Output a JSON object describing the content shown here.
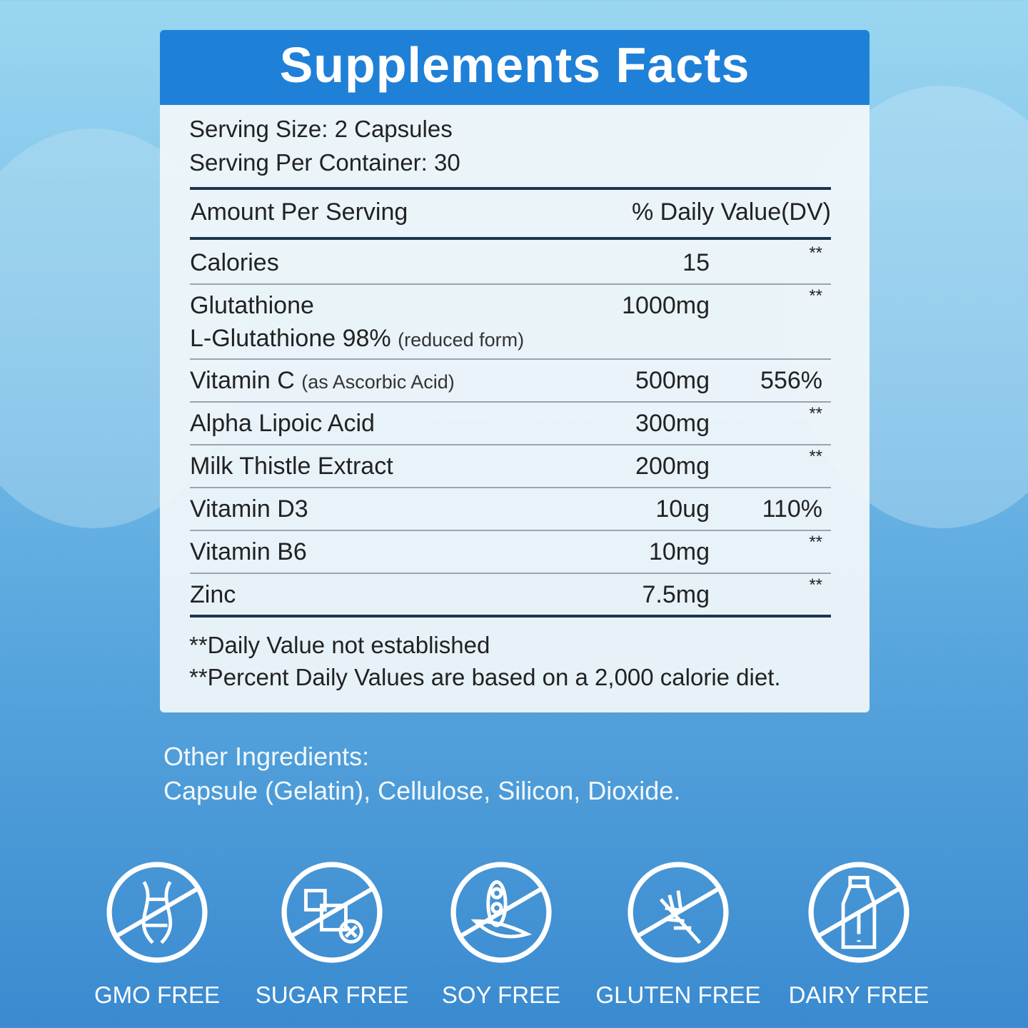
{
  "title": "Supplements Facts",
  "serving_size": "Serving Size: 2 Capsules",
  "servings_per_container": "Serving Per Container: 30",
  "header_left": "Amount Per Serving",
  "header_right": "% Daily Value(DV)",
  "rows": [
    {
      "name": "Calories",
      "amount": "15",
      "dv": "**"
    },
    {
      "name": "Glutathione",
      "sub": "L-Glutathione 98%",
      "sub_note": "(reduced form)",
      "amount": "1000mg",
      "dv": "**"
    },
    {
      "name": "Vitamin C",
      "note": "(as Ascorbic Acid)",
      "amount": "500mg",
      "dv": "556%"
    },
    {
      "name": "Alpha Lipoic Acid",
      "amount": "300mg",
      "dv": "**"
    },
    {
      "name": "Milk Thistle Extract",
      "amount": "200mg",
      "dv": "**"
    },
    {
      "name": "Vitamin D3",
      "amount": "10ug",
      "dv": "110%"
    },
    {
      "name": "Vitamin B6",
      "amount": "10mg",
      "dv": "**"
    },
    {
      "name": "Zinc",
      "amount": "7.5mg",
      "dv": "**"
    }
  ],
  "footnotes": [
    "**Daily Value not established",
    "**Percent Daily Values are based on a 2,000 calorie diet."
  ],
  "other_ingredients": {
    "label": "Other Ingredients:",
    "text": "Capsule (Gelatin), Cellulose, Silicon, Dioxide."
  },
  "badges": [
    {
      "label": "GMO FREE",
      "icon": "dna-icon"
    },
    {
      "label": "SUGAR FREE",
      "icon": "sugar-cube-icon"
    },
    {
      "label": "SOY FREE",
      "icon": "soybean-icon"
    },
    {
      "label": "GLUTEN FREE",
      "icon": "wheat-icon"
    },
    {
      "label": "DAIRY FREE",
      "icon": "milk-bottle-icon"
    }
  ],
  "colors": {
    "header": "#1f80d8",
    "rule": "#1b3550"
  }
}
